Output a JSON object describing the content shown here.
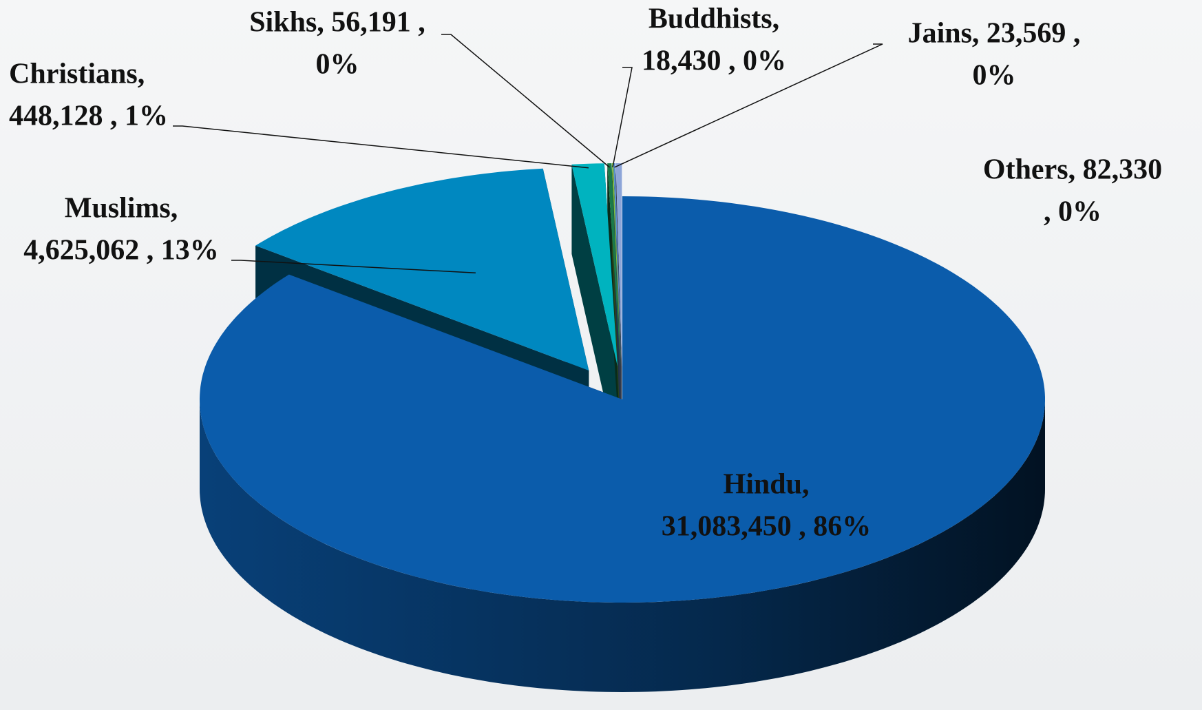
{
  "chart_data": {
    "type": "pie",
    "categories": [
      "Hindu",
      "Muslims",
      "Christians",
      "Sikhs",
      "Buddhists",
      "Jains",
      "Others"
    ],
    "values": [
      31083450,
      4625062,
      448128,
      56191,
      18430,
      23569,
      82330
    ],
    "labels": [
      [
        "Hindu,",
        "31,083,450 , 86%"
      ],
      [
        "Muslims,",
        "4,625,062 , 13%"
      ],
      [
        "Christians,",
        "448,128 , 1%"
      ],
      [
        "Sikhs,  56,191 ,",
        "0%"
      ],
      [
        "Buddhists,",
        "18,430 , 0%"
      ],
      [
        "Jains,  23,569 ,",
        "0%"
      ],
      [
        "Others,  82,330",
        ", 0%"
      ]
    ],
    "colors": [
      "#0b5cab",
      "#0088c0",
      "#00b3bf",
      "#1a7a4a",
      "#7cc242",
      "#5a8fd0",
      "#8da5d8"
    ]
  }
}
